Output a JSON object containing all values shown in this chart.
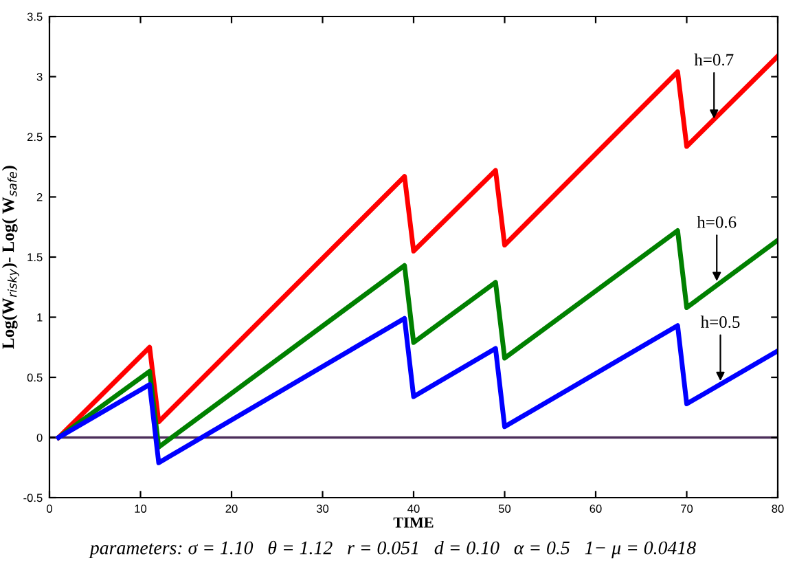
{
  "chart_data": {
    "type": "line",
    "xlabel": "TIME",
    "ylabel": "Log(W$_{risky}$)- Log( W$_{safe}$)",
    "series": [
      {
        "color": "#ff0000",
        "x": [
          1,
          11,
          12,
          39,
          40,
          49,
          50,
          69,
          70,
          80
        ],
        "values": [
          0,
          0.75,
          0.13,
          2.17,
          1.55,
          2.22,
          1.6,
          3.04,
          2.42,
          3.17
        ]
      },
      {
        "color": "#008000",
        "x": [
          1,
          11,
          12,
          39,
          40,
          49,
          50,
          69,
          70,
          80
        ],
        "values": [
          0,
          0.55,
          -0.08,
          1.43,
          0.79,
          1.29,
          0.66,
          1.72,
          1.08,
          1.64
        ]
      },
      {
        "color": "#0000ff",
        "x": [
          1,
          11,
          12,
          39,
          40,
          49,
          50,
          69,
          70,
          80
        ],
        "values": [
          0,
          0.44,
          -0.21,
          0.99,
          0.34,
          0.74,
          0.09,
          0.93,
          0.28,
          0.72
        ]
      }
    ],
    "ref_lines": [
      {
        "axis": "y",
        "value": 0,
        "color": "#4b2e5a"
      }
    ],
    "annotations": [
      {
        "text": "h=0.7",
        "x": 73,
        "y": 2.65
      },
      {
        "text": "h=0.6",
        "x": 73.3,
        "y": 1.3
      },
      {
        "text": "h=0.5",
        "x": 73.7,
        "y": 0.47
      },
      "parameters: σ = 1.10   θ = 1.12   r = 0.051   d = 0.10   α = 0.5   1− μ = 0.0418"
    ],
    "xlim": [
      0,
      80
    ],
    "xticks": [
      0,
      10,
      20,
      30,
      40,
      50,
      60,
      70,
      80
    ],
    "ylim": [
      -0.5,
      3.5
    ],
    "yticks": [
      -0.5,
      0,
      0.5,
      1,
      1.5,
      2,
      2.5,
      3,
      3.5
    ],
    "grid": false,
    "legend": false,
    "marker": "none",
    "line_style": "solid"
  }
}
